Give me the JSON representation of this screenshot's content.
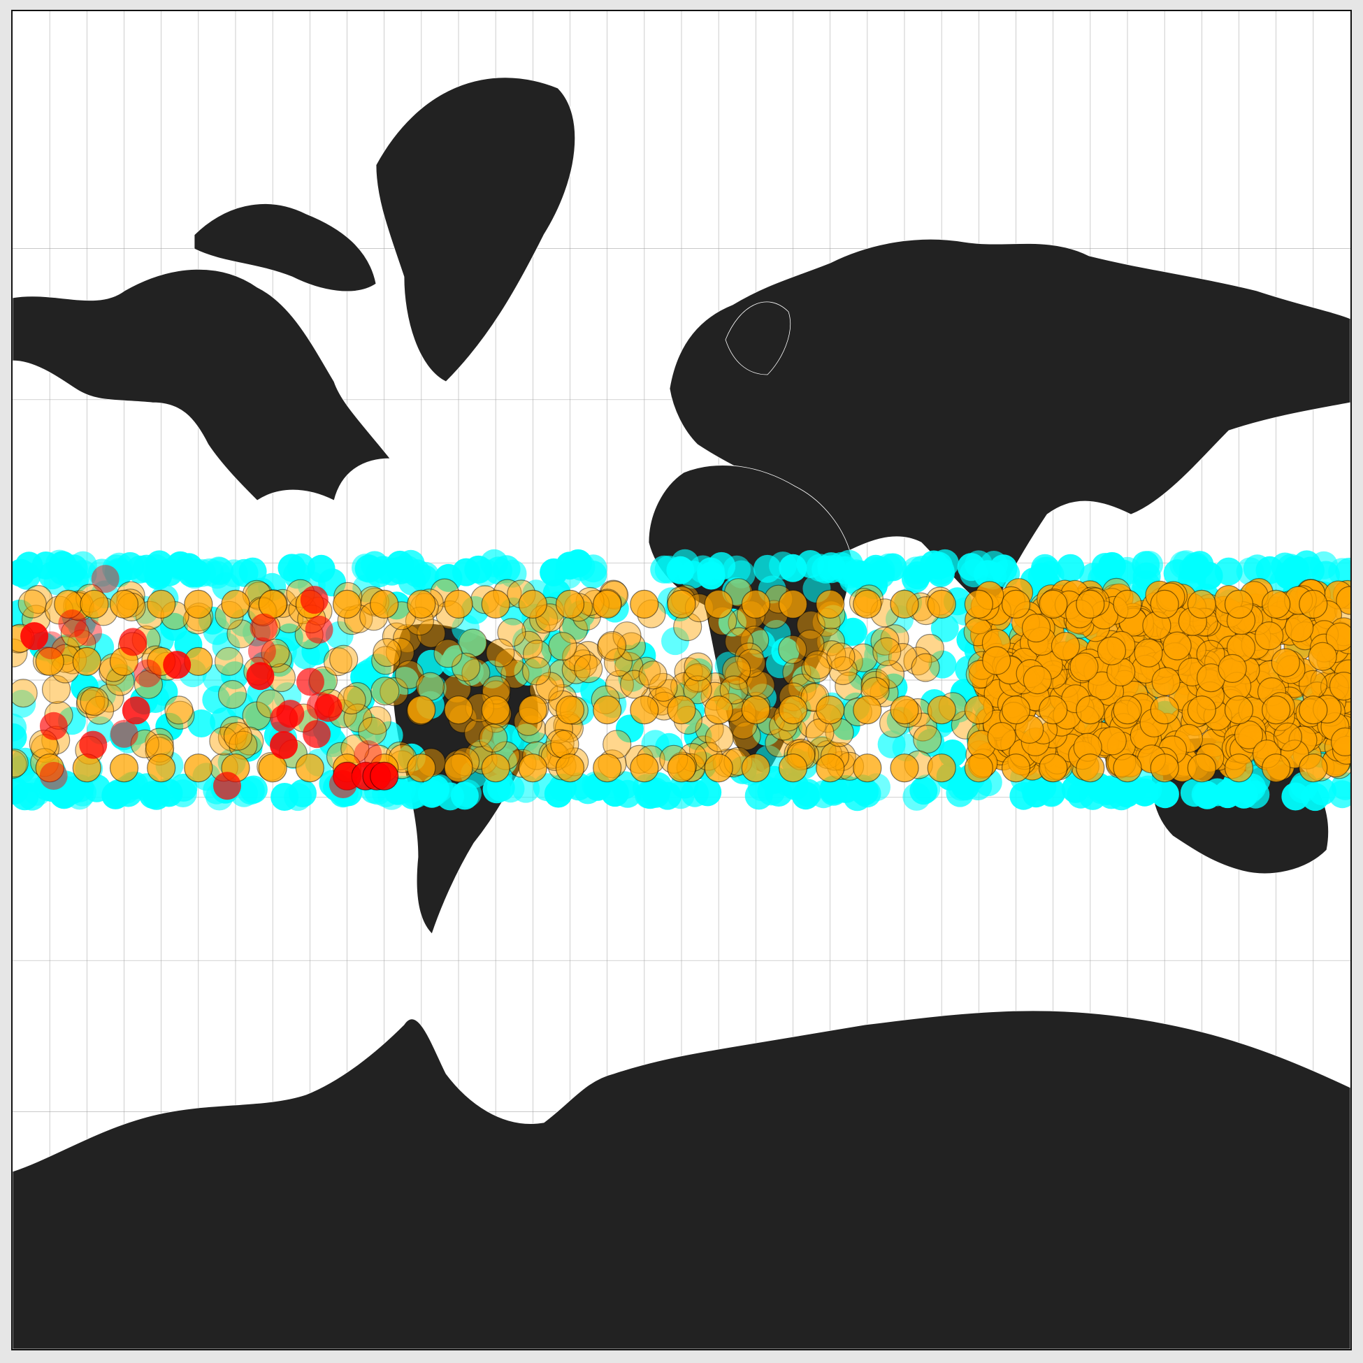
{
  "map": {
    "projection": "mercator",
    "land_color": "#222222",
    "ocean_color": "#ffffff",
    "border_color": "#ffffff",
    "graticule": {
      "shown": true,
      "meridian_step_deg": 10,
      "parallels_deg": [
        75,
        60,
        30,
        0,
        -30,
        -60,
        -75
      ]
    },
    "extent": {
      "lon": [
        -180,
        180
      ],
      "lat": [
        -85,
        85
      ]
    }
  },
  "chart_data": {
    "type": "scatter",
    "coordinate_system": "lon-lat",
    "point_band_lat": [
      -30,
      30
    ],
    "categories": [
      {
        "color": "#00ffff",
        "approx_lat_range": [
          -30,
          30
        ],
        "lon_range": [
          -180,
          180
        ]
      },
      {
        "color": "#ffa500",
        "approx_lat_range": [
          -23,
          23
        ],
        "lon_range": [
          -180,
          180
        ],
        "densest_region_lon": [
          80,
          180
        ]
      },
      {
        "color": "#ff0000",
        "approx_lat_range": [
          -30,
          30
        ],
        "lon_range": [
          -180,
          -80
        ]
      }
    ],
    "point_groups": [
      {
        "color": "#ffa500",
        "lon": [
          -165,
          -158,
          -150,
          -140,
          -130,
          -120,
          -110,
          -100,
          -90,
          -80,
          -70,
          -60,
          -50,
          -40,
          -30,
          -20,
          -10,
          0,
          10,
          20,
          30,
          40,
          50,
          60,
          70,
          80,
          90,
          100,
          110,
          120,
          130,
          140,
          150,
          160,
          170
        ],
        "lat": 20
      },
      {
        "color": "#ffa500",
        "lon": [
          -170,
          -160,
          -150,
          -140,
          -130
        ],
        "lat": 5
      },
      {
        "color": "#ffa500",
        "lon": [
          -170,
          -160,
          -150,
          -140,
          -130,
          -120,
          -110,
          -100,
          -90,
          -80,
          -70,
          -60,
          -50,
          -40,
          -30,
          -20,
          -10,
          0,
          10,
          20,
          30,
          40,
          50,
          60,
          70,
          80,
          90,
          100,
          110,
          120,
          130,
          140,
          150,
          160,
          170
        ],
        "lat": -23
      },
      {
        "color": "#ffa500",
        "lon": [
          -70,
          -60,
          -50,
          -40,
          -30,
          -20,
          -10,
          0,
          10,
          20,
          30,
          40,
          50,
          60,
          70,
          80,
          90,
          100,
          110,
          120,
          130,
          140,
          150,
          160,
          170
        ],
        "lat": -8
      },
      {
        "color": "#ff0000",
        "lon": [
          -90,
          -85,
          -82,
          -80
        ],
        "lat": -25
      }
    ]
  }
}
